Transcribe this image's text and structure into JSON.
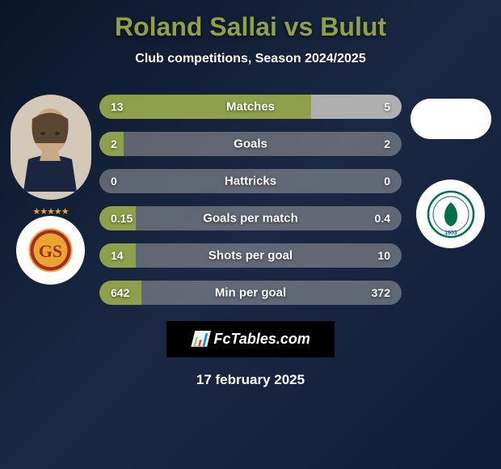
{
  "title": "Roland Sallai vs Bulut",
  "subtitle": "Club competitions, Season 2024/2025",
  "player_left_name": "Roland Sallai",
  "player_right_name": "Bulut",
  "colors": {
    "left_bar": "#8fa04a",
    "right_bar": "#b0b0b0",
    "neutral_bar": "#999999",
    "background_start": "#0a1628",
    "background_end": "#0f1d38",
    "title_color": "#8fa04a",
    "text_color": "#ffffff"
  },
  "stats": [
    {
      "label": "Matches",
      "left_value": "13",
      "right_value": "5",
      "left_pct": 70,
      "right_pct": 30,
      "left_color": "#8fa04a",
      "right_color": "#b0b0b0"
    },
    {
      "label": "Goals",
      "left_value": "2",
      "right_value": "2",
      "left_pct": 8,
      "right_pct": 0,
      "left_color": "#8fa04a",
      "right_color": "#b0b0b0"
    },
    {
      "label": "Hattricks",
      "left_value": "0",
      "right_value": "0",
      "left_pct": 0,
      "right_pct": 0,
      "left_color": "#999999",
      "right_color": "#999999"
    },
    {
      "label": "Goals per match",
      "left_value": "0.15",
      "right_value": "0.4",
      "left_pct": 12,
      "right_pct": 0,
      "left_color": "#8fa04a",
      "right_color": "#b0b0b0"
    },
    {
      "label": "Shots per goal",
      "left_value": "14",
      "right_value": "10",
      "left_pct": 12,
      "right_pct": 0,
      "left_color": "#8fa04a",
      "right_color": "#b0b0b0"
    },
    {
      "label": "Min per goal",
      "left_value": "642",
      "right_value": "372",
      "left_pct": 14,
      "right_pct": 0,
      "left_color": "#8fa04a",
      "right_color": "#b0b0b0"
    }
  ],
  "brand_text": "FcTables.com",
  "date": "17 february 2025",
  "club_left": "Galatasaray",
  "club_right": "Caykur Rizespor",
  "rizespor_year": "1953"
}
